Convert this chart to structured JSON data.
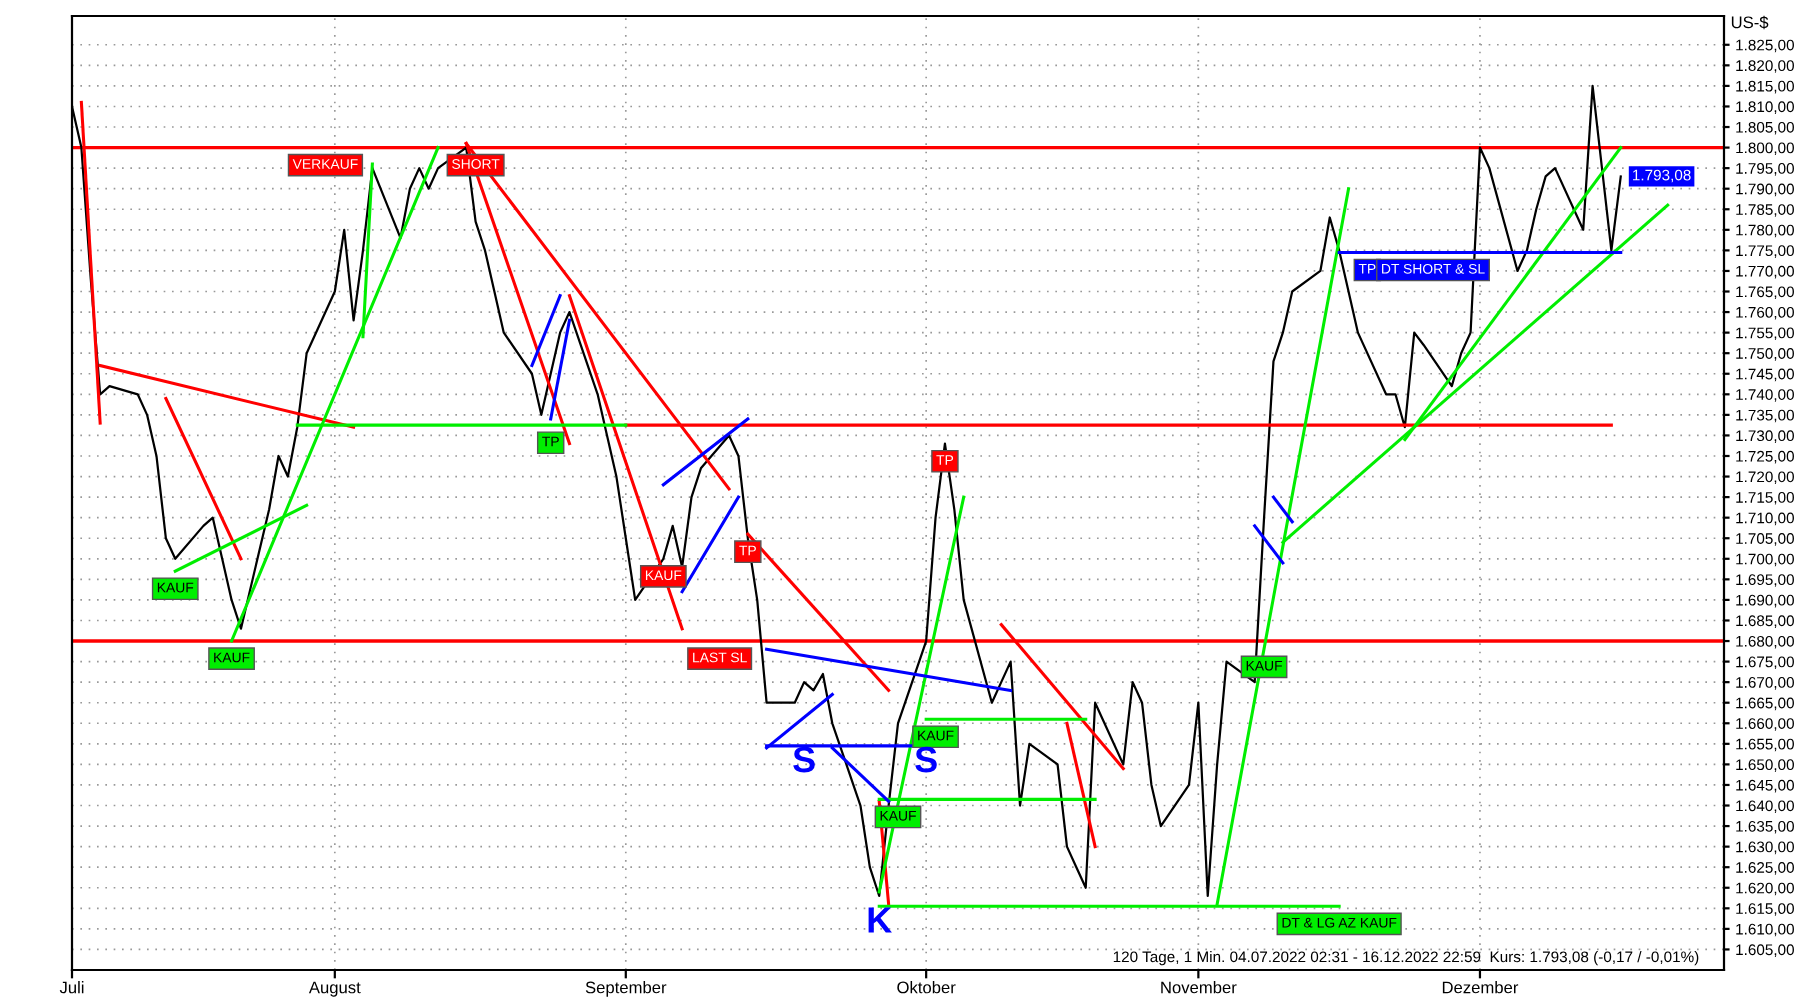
{
  "chart_data": {
    "type": "line",
    "ylabel": "US-$",
    "grid": true,
    "marker": "none",
    "line_style": "solid",
    "xlim": [
      "2022-07-04",
      "2022-12-27"
    ],
    "ylim": [
      1600,
      1832
    ],
    "xticks": [
      {
        "value": "2022-07-04",
        "label": "Juli"
      },
      {
        "value": "2022-08-01",
        "label": "August"
      },
      {
        "value": "2022-09-01",
        "label": "September"
      },
      {
        "value": "2022-10-03",
        "label": "Oktober"
      },
      {
        "value": "2022-11-01",
        "label": "November"
      },
      {
        "value": "2022-12-01",
        "label": "Dezember"
      }
    ],
    "yticks": [
      {
        "value": 1605,
        "label": "1.605,00"
      },
      {
        "value": 1610,
        "label": "1.610,00"
      },
      {
        "value": 1615,
        "label": "1.615,00"
      },
      {
        "value": 1620,
        "label": "1.620,00"
      },
      {
        "value": 1625,
        "label": "1.625,00"
      },
      {
        "value": 1630,
        "label": "1.630,00"
      },
      {
        "value": 1635,
        "label": "1.635,00"
      },
      {
        "value": 1640,
        "label": "1.640,00"
      },
      {
        "value": 1645,
        "label": "1.645,00"
      },
      {
        "value": 1650,
        "label": "1.650,00"
      },
      {
        "value": 1655,
        "label": "1.655,00"
      },
      {
        "value": 1660,
        "label": "1.660,00"
      },
      {
        "value": 1665,
        "label": "1.665,00"
      },
      {
        "value": 1670,
        "label": "1.670,00"
      },
      {
        "value": 1675,
        "label": "1.675,00"
      },
      {
        "value": 1680,
        "label": "1.680,00"
      },
      {
        "value": 1685,
        "label": "1.685,00"
      },
      {
        "value": 1690,
        "label": "1.690,00"
      },
      {
        "value": 1695,
        "label": "1.695,00"
      },
      {
        "value": 1700,
        "label": "1.700,00"
      },
      {
        "value": 1705,
        "label": "1.705,00"
      },
      {
        "value": 1710,
        "label": "1.710,00"
      },
      {
        "value": 1715,
        "label": "1.715,00"
      },
      {
        "value": 1720,
        "label": "1.720,00"
      },
      {
        "value": 1725,
        "label": "1.725,00"
      },
      {
        "value": 1730,
        "label": "1.730,00"
      },
      {
        "value": 1735,
        "label": "1.735,00"
      },
      {
        "value": 1740,
        "label": "1.740,00"
      },
      {
        "value": 1745,
        "label": "1.745,00"
      },
      {
        "value": 1750,
        "label": "1.750,00"
      },
      {
        "value": 1755,
        "label": "1.755,00"
      },
      {
        "value": 1760,
        "label": "1.760,00"
      },
      {
        "value": 1765,
        "label": "1.765,00"
      },
      {
        "value": 1770,
        "label": "1.770,00"
      },
      {
        "value": 1775,
        "label": "1.775,00"
      },
      {
        "value": 1780,
        "label": "1.780,00"
      },
      {
        "value": 1785,
        "label": "1.785,00"
      },
      {
        "value": 1790,
        "label": "1.790,00"
      },
      {
        "value": 1795,
        "label": "1.795,00"
      },
      {
        "value": 1800,
        "label": "1.800,00"
      },
      {
        "value": 1805,
        "label": "1.805,00"
      },
      {
        "value": 1810,
        "label": "1.810,00"
      },
      {
        "value": 1815,
        "label": "1.815,00"
      },
      {
        "value": 1820,
        "label": "1.820,00"
      },
      {
        "value": 1825,
        "label": "1.825,00"
      }
    ],
    "ref_lines": [
      {
        "axis": "y",
        "value": 1800,
        "color": "#ff0000"
      },
      {
        "axis": "y",
        "value": 1680,
        "color": "#ff0000"
      }
    ],
    "series": [
      {
        "color": "#000000",
        "x": [
          "2022-07-04",
          "2022-07-05",
          "2022-07-06",
          "2022-07-07",
          "2022-07-08",
          "2022-07-11",
          "2022-07-12",
          "2022-07-13",
          "2022-07-14",
          "2022-07-15",
          "2022-07-18",
          "2022-07-19",
          "2022-07-20",
          "2022-07-21",
          "2022-07-22",
          "2022-07-25",
          "2022-07-26",
          "2022-07-27",
          "2022-07-28",
          "2022-07-29",
          "2022-08-01",
          "2022-08-02",
          "2022-08-03",
          "2022-08-04",
          "2022-08-05",
          "2022-08-08",
          "2022-08-09",
          "2022-08-10",
          "2022-08-11",
          "2022-08-12",
          "2022-08-15",
          "2022-08-16",
          "2022-08-17",
          "2022-08-18",
          "2022-08-19",
          "2022-08-22",
          "2022-08-23",
          "2022-08-24",
          "2022-08-25",
          "2022-08-26",
          "2022-08-29",
          "2022-08-30",
          "2022-08-31",
          "2022-09-01",
          "2022-09-02",
          "2022-09-05",
          "2022-09-06",
          "2022-09-07",
          "2022-09-08",
          "2022-09-09",
          "2022-09-12",
          "2022-09-13",
          "2022-09-14",
          "2022-09-15",
          "2022-09-16",
          "2022-09-19",
          "2022-09-20",
          "2022-09-21",
          "2022-09-22",
          "2022-09-23",
          "2022-09-26",
          "2022-09-27",
          "2022-09-28",
          "2022-09-29",
          "2022-09-30",
          "2022-10-03",
          "2022-10-04",
          "2022-10-05",
          "2022-10-06",
          "2022-10-07",
          "2022-10-10",
          "2022-10-11",
          "2022-10-12",
          "2022-10-13",
          "2022-10-14",
          "2022-10-17",
          "2022-10-18",
          "2022-10-19",
          "2022-10-20",
          "2022-10-21",
          "2022-10-24",
          "2022-10-25",
          "2022-10-26",
          "2022-10-27",
          "2022-10-28",
          "2022-10-31",
          "2022-11-01",
          "2022-11-02",
          "2022-11-03",
          "2022-11-04",
          "2022-11-07",
          "2022-11-08",
          "2022-11-09",
          "2022-11-10",
          "2022-11-11",
          "2022-11-14",
          "2022-11-15",
          "2022-11-16",
          "2022-11-17",
          "2022-11-18",
          "2022-11-21",
          "2022-11-22",
          "2022-11-23",
          "2022-11-24",
          "2022-11-25",
          "2022-11-28",
          "2022-11-29",
          "2022-11-30",
          "2022-12-01",
          "2022-12-02",
          "2022-12-05",
          "2022-12-06",
          "2022-12-07",
          "2022-12-08",
          "2022-12-09",
          "2022-12-12",
          "2022-12-13",
          "2022-12-14",
          "2022-12-15",
          "2022-12-16"
        ],
        "values": [
          1810,
          1800,
          1768,
          1740,
          1742,
          1740,
          1735,
          1725,
          1705,
          1700,
          1708,
          1710,
          1700,
          1690,
          1683,
          1712,
          1725,
          1720,
          1732,
          1750,
          1765,
          1780,
          1758,
          1775,
          1795,
          1778,
          1790,
          1795,
          1790,
          1795,
          1800,
          1782,
          1775,
          1765,
          1755,
          1745,
          1735,
          1745,
          1755,
          1760,
          1740,
          1730,
          1720,
          1705,
          1690,
          1700,
          1708,
          1698,
          1715,
          1722,
          1730,
          1725,
          1705,
          1690,
          1665,
          1665,
          1670,
          1668,
          1672,
          1660,
          1640,
          1625,
          1618,
          1640,
          1660,
          1680,
          1710,
          1728,
          1712,
          1690,
          1665,
          1670,
          1675,
          1640,
          1655,
          1650,
          1630,
          1625,
          1620,
          1665,
          1650,
          1670,
          1665,
          1645,
          1635,
          1645,
          1665,
          1618,
          1650,
          1675,
          1670,
          1710,
          1748,
          1755,
          1765,
          1770,
          1783,
          1775,
          1765,
          1755,
          1740,
          1740,
          1732,
          1755,
          1752,
          1742,
          1750,
          1755,
          1800,
          1795,
          1770,
          1775,
          1785,
          1793,
          1795,
          1780,
          1815,
          1795,
          1775,
          1793
        ]
      },
      {
        "color": "#ff0000",
        "x": [
          "2022-07-05",
          "2022-07-07"
        ],
        "values": [
          1811,
          1733
        ]
      },
      {
        "color": "#ff0000",
        "x": [
          "2022-07-07",
          "2022-08-03"
        ],
        "values": [
          1747,
          1732
        ]
      },
      {
        "color": "#ff0000",
        "x": [
          "2022-07-14",
          "2022-07-22"
        ],
        "values": [
          1739,
          1700
        ]
      },
      {
        "color": "#ff0000",
        "x": [
          "2022-08-15",
          "2022-08-26"
        ],
        "values": [
          1801,
          1728
        ]
      },
      {
        "color": "#ff0000",
        "x": [
          "2022-08-15",
          "2022-09-12"
        ],
        "values": [
          1801,
          1717
        ]
      },
      {
        "color": "#ff0000",
        "x": [
          "2022-08-26",
          "2022-09-07"
        ],
        "values": [
          1764,
          1683
        ]
      },
      {
        "color": "#ff0000",
        "x": [
          "2022-09-14",
          "2022-09-29"
        ],
        "values": [
          1706,
          1668
        ]
      },
      {
        "color": "#ff0000",
        "x": [
          "2022-10-11",
          "2022-10-24"
        ],
        "values": [
          1684,
          1649
        ]
      },
      {
        "color": "#ff0000",
        "x": [
          "2022-10-18",
          "2022-10-21"
        ],
        "values": [
          1660,
          1630
        ]
      },
      {
        "color": "#ff0000",
        "x": [
          "2022-09-28",
          "2022-09-29"
        ],
        "values": [
          1641,
          1616
        ]
      },
      {
        "color": "#ff0000",
        "x": [
          "2022-09-01",
          "2022-12-15"
        ],
        "values": [
          1732.5,
          1732.5
        ]
      },
      {
        "color": "#00ee00",
        "x": [
          "2022-07-21",
          "2022-08-12"
        ],
        "values": [
          1680,
          1800
        ]
      },
      {
        "color": "#00ee00",
        "x": [
          "2022-07-15",
          "2022-07-29"
        ],
        "values": [
          1697,
          1713
        ]
      },
      {
        "color": "#00ee00",
        "x": [
          "2022-08-04",
          "2022-08-05"
        ],
        "values": [
          1754,
          1796
        ]
      },
      {
        "color": "#00ee00",
        "x": [
          "2022-07-28",
          "2022-09-01"
        ],
        "values": [
          1732.5,
          1732.5
        ]
      },
      {
        "color": "#00ee00",
        "x": [
          "2022-09-28",
          "2022-10-07"
        ],
        "values": [
          1619,
          1715
        ]
      },
      {
        "color": "#00ee00",
        "x": [
          "2022-10-03",
          "2022-10-20"
        ],
        "values": [
          1661,
          1661
        ]
      },
      {
        "color": "#00ee00",
        "x": [
          "2022-09-28",
          "2022-10-21"
        ],
        "values": [
          1641.5,
          1641.5
        ]
      },
      {
        "color": "#00ee00",
        "x": [
          "2022-09-28",
          "2022-11-16"
        ],
        "values": [
          1615.5,
          1615.5
        ]
      },
      {
        "color": "#00ee00",
        "x": [
          "2022-11-03",
          "2022-11-17"
        ],
        "values": [
          1616,
          1790
        ]
      },
      {
        "color": "#00ee00",
        "x": [
          "2022-11-10",
          "2022-12-21"
        ],
        "values": [
          1704,
          1786
        ]
      },
      {
        "color": "#00ee00",
        "x": [
          "2022-11-23",
          "2022-12-16"
        ],
        "values": [
          1729,
          1800
        ]
      },
      {
        "color": "#0000ff",
        "x": [
          "2022-08-22",
          "2022-08-25"
        ],
        "values": [
          1747,
          1764
        ]
      },
      {
        "color": "#0000ff",
        "x": [
          "2022-08-24",
          "2022-08-26"
        ],
        "values": [
          1734,
          1758
        ]
      },
      {
        "color": "#0000ff",
        "x": [
          "2022-09-05",
          "2022-09-14"
        ],
        "values": [
          1718,
          1734
        ]
      },
      {
        "color": "#0000ff",
        "x": [
          "2022-09-07",
          "2022-09-13"
        ],
        "values": [
          1692,
          1715
        ]
      },
      {
        "color": "#0000ff",
        "x": [
          "2022-09-16",
          "2022-09-23"
        ],
        "values": [
          1654,
          1667
        ]
      },
      {
        "color": "#0000ff",
        "x": [
          "2022-09-16",
          "2022-10-03"
        ],
        "values": [
          1654.5,
          1654.5
        ]
      },
      {
        "color": "#0000ff",
        "x": [
          "2022-09-16",
          "2022-10-12"
        ],
        "values": [
          1678,
          1668
        ]
      },
      {
        "color": "#0000ff",
        "x": [
          "2022-09-23",
          "2022-09-29"
        ],
        "values": [
          1654,
          1641
        ]
      },
      {
        "color": "#0000ff",
        "x": [
          "2022-11-07",
          "2022-11-10"
        ],
        "values": [
          1708,
          1699
        ]
      },
      {
        "color": "#0000ff",
        "x": [
          "2022-11-09",
          "2022-11-11"
        ],
        "values": [
          1715,
          1709
        ]
      },
      {
        "color": "#0000ff",
        "x": [
          "2022-11-16",
          "2022-12-16"
        ],
        "values": [
          1774.5,
          1774.5
        ]
      }
    ],
    "annotations": [
      {
        "text": "VERKAUF",
        "x": "2022-07-31",
        "y": 1800
      },
      {
        "text": "SHORT",
        "x": "2022-08-16",
        "y": 1800
      },
      {
        "text": "TP",
        "x": "2022-08-24",
        "y": 1732.5
      },
      {
        "text": "KAUF",
        "x": "2022-07-15",
        "y": 1697
      },
      {
        "text": "KAUF",
        "x": "2022-07-21",
        "y": 1680
      },
      {
        "text": "KAUF",
        "x": "2022-09-05",
        "y": 1700
      },
      {
        "text": "TP",
        "x": "2022-09-14",
        "y": 1706
      },
      {
        "text": "LAST SL",
        "x": "2022-09-11",
        "y": 1680
      },
      {
        "text": "TP",
        "x": "2022-10-05",
        "y": 1728
      },
      {
        "text": "KAUF",
        "x": "2022-10-04",
        "y": 1661
      },
      {
        "text": "KAUF",
        "x": "2022-09-30",
        "y": 1641.5
      },
      {
        "text": "KAUF",
        "x": "2022-11-08",
        "y": 1678
      },
      {
        "text": "DT & LG AZ KAUF",
        "x": "2022-11-16",
        "y": 1615.5
      },
      {
        "text": "TP",
        "x": "2022-11-19",
        "y": 1774.5
      },
      {
        "text": "DT SHORT & SL",
        "x": "2022-11-26",
        "y": 1774.5
      },
      {
        "text": "S",
        "x": "2022-09-20",
        "y": 1654.5
      },
      {
        "text": "S",
        "x": "2022-10-03",
        "y": 1654.5
      },
      {
        "text": "K",
        "x": "2022-09-28",
        "y": 1615.5
      },
      {
        "text": "1.793,08",
        "x": "2022-12-16",
        "y": 1793
      },
      "120 Tage, 1 Min. 04.07.2022 02:31 - 16.12.2022 22:59  Kurs: 1.793,08 (-0,17 / -0,01%)"
    ]
  }
}
